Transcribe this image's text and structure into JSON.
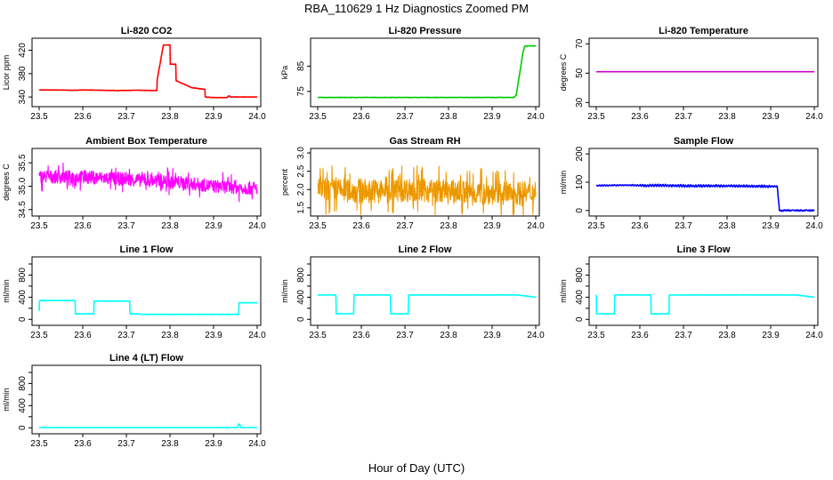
{
  "figure": {
    "title": "RBA_110629  1 Hz Diagnostics Zoomed PM",
    "xlabel": "Hour of Day (UTC)"
  },
  "chart_data": [
    {
      "type": "line",
      "title": "Li-820 CO2",
      "ylabel": "Licor ppm",
      "xlim": [
        23.5,
        24.0
      ],
      "ylim": [
        328,
        436
      ],
      "xticks": [
        23.5,
        23.6,
        23.7,
        23.8,
        23.9,
        24.0
      ],
      "xticklabels": [
        "23.5",
        "23.6",
        "23.7",
        "23.8",
        "23.9",
        "24.0"
      ],
      "yticks": [
        340,
        380,
        420
      ],
      "yticklabels": [
        "340",
        "380",
        "420"
      ],
      "grid": false,
      "color": "#ff0000",
      "series": [
        {
          "x": [
            23.5,
            23.54,
            23.58,
            23.6,
            23.64,
            23.68,
            23.72,
            23.77,
            23.77,
            23.785,
            23.785,
            23.8,
            23.8,
            23.814,
            23.814,
            23.85,
            23.85,
            23.88,
            23.88,
            23.9,
            23.92,
            23.93,
            23.935,
            23.94,
            24.0
          ],
          "y": [
            352,
            352,
            351.5,
            352,
            351.5,
            351,
            351.5,
            351,
            367,
            429,
            429,
            429,
            396,
            396,
            368,
            356,
            356,
            353,
            340,
            339,
            339,
            339,
            342,
            340,
            340
          ]
        }
      ]
    },
    {
      "type": "line",
      "title": "Li-820 Pressure",
      "ylabel": "kPa",
      "xlim": [
        23.5,
        24.0
      ],
      "ylim": [
        70,
        95
      ],
      "xticks": [
        23.5,
        23.6,
        23.7,
        23.8,
        23.9,
        24.0
      ],
      "xticklabels": [
        "23.5",
        "23.6",
        "23.7",
        "23.8",
        "23.9",
        "24.0"
      ],
      "yticks": [
        75,
        85
      ],
      "yticklabels": [
        "75",
        "85"
      ],
      "grid": false,
      "color": "#00cc00",
      "series": [
        {
          "x": [
            23.5,
            23.6,
            23.7,
            23.8,
            23.9,
            23.95,
            23.955,
            23.965,
            23.97,
            23.975,
            24.0
          ],
          "y": [
            72.6,
            72.6,
            72.6,
            72.6,
            72.6,
            72.6,
            73.5,
            84,
            90,
            93,
            93
          ]
        }
      ]
    },
    {
      "type": "line",
      "title": "Li-820 Temperature",
      "ylabel": "degrees C",
      "xlim": [
        23.5,
        24.0
      ],
      "ylim": [
        29,
        72
      ],
      "xticks": [
        23.5,
        23.6,
        23.7,
        23.8,
        23.9,
        24.0
      ],
      "xticklabels": [
        "23.5",
        "23.6",
        "23.7",
        "23.8",
        "23.9",
        "24.0"
      ],
      "yticks": [
        30,
        50,
        70
      ],
      "yticklabels": [
        "30",
        "50",
        "70"
      ],
      "grid": false,
      "color": "#cc00cc",
      "series": [
        {
          "x": [
            23.5,
            24.0
          ],
          "y": [
            51,
            51
          ]
        }
      ]
    },
    {
      "type": "line",
      "title": "Ambient Box Temperature",
      "ylabel": "degrees C",
      "xlim": [
        23.5,
        24.0
      ],
      "ylim": [
        34.42,
        35.75
      ],
      "xticks": [
        23.5,
        23.6,
        23.7,
        23.8,
        23.9,
        24.0
      ],
      "xticklabels": [
        "23.5",
        "23.6",
        "23.7",
        "23.8",
        "23.9",
        "24.0"
      ],
      "yticks": [
        34.5,
        35.0,
        35.5
      ],
      "yticklabels": [
        "34.5",
        "35.0",
        "35.5"
      ],
      "grid": false,
      "color": "#ff00ff",
      "series": [
        {
          "x": [
            23.5,
            23.6,
            23.7,
            23.8,
            23.9,
            24.0
          ],
          "y": [
            35.2,
            35.2,
            35.15,
            35.1,
            35.0,
            34.95
          ]
        }
      ]
    },
    {
      "type": "line",
      "title": "Gas Stream RH",
      "ylabel": "percent",
      "xlim": [
        23.5,
        24.0
      ],
      "ylim": [
        1.35,
        3.05
      ],
      "xticks": [
        23.5,
        23.6,
        23.7,
        23.8,
        23.9,
        24.0
      ],
      "xticklabels": [
        "23.5",
        "23.6",
        "23.7",
        "23.8",
        "23.9",
        "24.0"
      ],
      "yticks": [
        1.5,
        2.0,
        2.5,
        3.0
      ],
      "yticklabels": [
        "1.5",
        "2.0",
        "2.5",
        "3.0"
      ],
      "grid": false,
      "color": "#ffa500",
      "series": [
        {
          "x": [
            23.5,
            23.6,
            23.7,
            23.8,
            23.9,
            24.0
          ],
          "y": [
            2.0,
            1.95,
            2.0,
            1.95,
            1.9,
            1.9
          ]
        }
      ]
    },
    {
      "type": "line",
      "title": "Sample Flow",
      "ylabel": "ml/min",
      "xlim": [
        23.5,
        24.0
      ],
      "ylim": [
        -10,
        210
      ],
      "xticks": [
        23.5,
        23.6,
        23.7,
        23.8,
        23.9,
        24.0
      ],
      "xticklabels": [
        "23.5",
        "23.6",
        "23.7",
        "23.8",
        "23.9",
        "24.0"
      ],
      "yticks": [
        0,
        100,
        200
      ],
      "yticklabels": [
        "0",
        "100",
        "200"
      ],
      "grid": false,
      "color": "#0000ff",
      "series": [
        {
          "x": [
            23.5,
            23.58,
            23.61,
            23.64,
            23.7,
            23.8,
            23.91,
            23.915,
            23.92,
            24.0
          ],
          "y": [
            88,
            90,
            88,
            89,
            87,
            87,
            85,
            85,
            0,
            0
          ]
        }
      ]
    },
    {
      "type": "line",
      "title": "Line 1 Flow",
      "ylabel": "ml/min",
      "xlim": [
        23.5,
        24.0
      ],
      "ylim": [
        -60,
        1080
      ],
      "xticks": [
        23.5,
        23.6,
        23.7,
        23.8,
        23.9,
        24.0
      ],
      "xticklabels": [
        "23.5",
        "23.6",
        "23.7",
        "23.8",
        "23.9",
        "24.0"
      ],
      "yticks": [
        0,
        200,
        400,
        600,
        800,
        1000
      ],
      "yticklabels": [
        "0",
        "400",
        "800"
      ],
      "grid": false,
      "color": "#00ffff",
      "series": [
        {
          "x": [
            23.5,
            23.5,
            23.583,
            23.583,
            23.625,
            23.625,
            23.708,
            23.708,
            23.75,
            23.958,
            23.958,
            24.0
          ],
          "y": [
            150,
            340,
            340,
            100,
            100,
            330,
            330,
            100,
            90,
            90,
            300,
            300
          ]
        }
      ]
    },
    {
      "type": "line",
      "title": "Line 2 Flow",
      "ylabel": "ml/min",
      "xlim": [
        23.5,
        24.0
      ],
      "ylim": [
        -60,
        1080
      ],
      "xticks": [
        23.5,
        23.6,
        23.7,
        23.8,
        23.9,
        24.0
      ],
      "xticklabels": [
        "23.5",
        "23.6",
        "23.7",
        "23.8",
        "23.9",
        "24.0"
      ],
      "yticks": [
        0,
        200,
        400,
        600,
        800,
        1000
      ],
      "yticklabels": [
        "0",
        "400",
        "800"
      ],
      "grid": false,
      "color": "#00ffff",
      "series": [
        {
          "x": [
            23.5,
            23.542,
            23.542,
            23.583,
            23.583,
            23.667,
            23.667,
            23.708,
            23.708,
            23.958,
            24.0
          ],
          "y": [
            440,
            440,
            100,
            100,
            440,
            440,
            100,
            100,
            440,
            440,
            400
          ]
        }
      ]
    },
    {
      "type": "line",
      "title": "Line 3 Flow",
      "ylabel": "ml/min",
      "xlim": [
        23.5,
        24.0
      ],
      "ylim": [
        -60,
        1080
      ],
      "xticks": [
        23.5,
        23.6,
        23.7,
        23.8,
        23.9,
        24.0
      ],
      "xticklabels": [
        "23.5",
        "23.6",
        "23.7",
        "23.8",
        "23.9",
        "24.0"
      ],
      "yticks": [
        0,
        200,
        400,
        600,
        800,
        1000
      ],
      "yticklabels": [
        "0",
        "400",
        "800"
      ],
      "grid": false,
      "color": "#00ffff",
      "series": [
        {
          "x": [
            23.5,
            23.5,
            23.542,
            23.542,
            23.625,
            23.625,
            23.667,
            23.667,
            23.958,
            24.0
          ],
          "y": [
            440,
            100,
            100,
            440,
            440,
            100,
            100,
            440,
            440,
            400
          ]
        }
      ]
    },
    {
      "type": "line",
      "title": "Line 4 (LT) Flow",
      "ylabel": "ml/min",
      "xlim": [
        23.5,
        24.0
      ],
      "ylim": [
        -60,
        1080
      ],
      "xticks": [
        23.5,
        23.6,
        23.7,
        23.8,
        23.9,
        24.0
      ],
      "xticklabels": [
        "23.5",
        "23.6",
        "23.7",
        "23.8",
        "23.9",
        "24.0"
      ],
      "yticks": [
        0,
        200,
        400,
        600,
        800,
        1000
      ],
      "yticklabels": [
        "0",
        "400",
        "800"
      ],
      "grid": false,
      "color": "#00ffff",
      "series": [
        {
          "x": [
            23.5,
            23.9,
            23.955,
            23.957,
            23.96,
            23.962,
            24.0
          ],
          "y": [
            5,
            5,
            5,
            70,
            60,
            5,
            5
          ]
        }
      ]
    }
  ]
}
